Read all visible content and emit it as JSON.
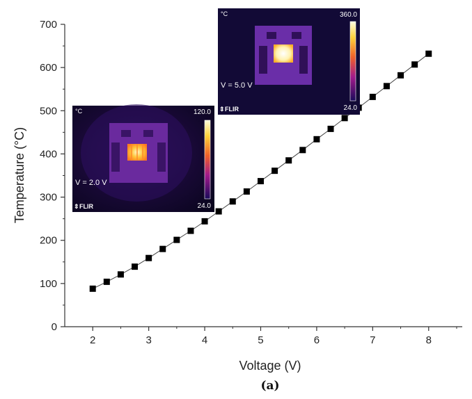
{
  "chart_data": {
    "type": "line",
    "title": "",
    "xlabel": "Voltage (V)",
    "ylabel": "Temperature (°C)",
    "xlim": [
      1.5,
      8.6
    ],
    "ylim": [
      0,
      700
    ],
    "xticks": [
      2,
      3,
      4,
      5,
      6,
      7,
      8
    ],
    "yticks": [
      0,
      100,
      200,
      300,
      400,
      500,
      600,
      700
    ],
    "x": [
      2.0,
      2.25,
      2.5,
      2.75,
      3.0,
      3.25,
      3.5,
      3.75,
      4.0,
      4.25,
      4.5,
      4.75,
      5.0,
      5.25,
      5.5,
      5.75,
      6.0,
      6.25,
      6.5,
      6.75,
      7.0,
      7.25,
      7.5,
      7.75,
      8.0
    ],
    "series": [
      {
        "marker": "square",
        "color": "#000000",
        "values": [
          88,
          104,
          121,
          139,
          159,
          180,
          201,
          222,
          244,
          267,
          290,
          313,
          337,
          361,
          385,
          409,
          434,
          458,
          483,
          507,
          532,
          557,
          582,
          607,
          632
        ]
      }
    ],
    "grid": false,
    "legend": "none"
  },
  "caption": "(a)",
  "insets": [
    {
      "unit": "°C",
      "max_label": "120.0",
      "min_label": "24.0",
      "voltage_label": "V = 2.0 V",
      "brand": "FLIR"
    },
    {
      "unit": "°C",
      "max_label": "360.0",
      "min_label": "24.0",
      "voltage_label": "V = 5.0 V",
      "brand": "FLIR"
    }
  ]
}
